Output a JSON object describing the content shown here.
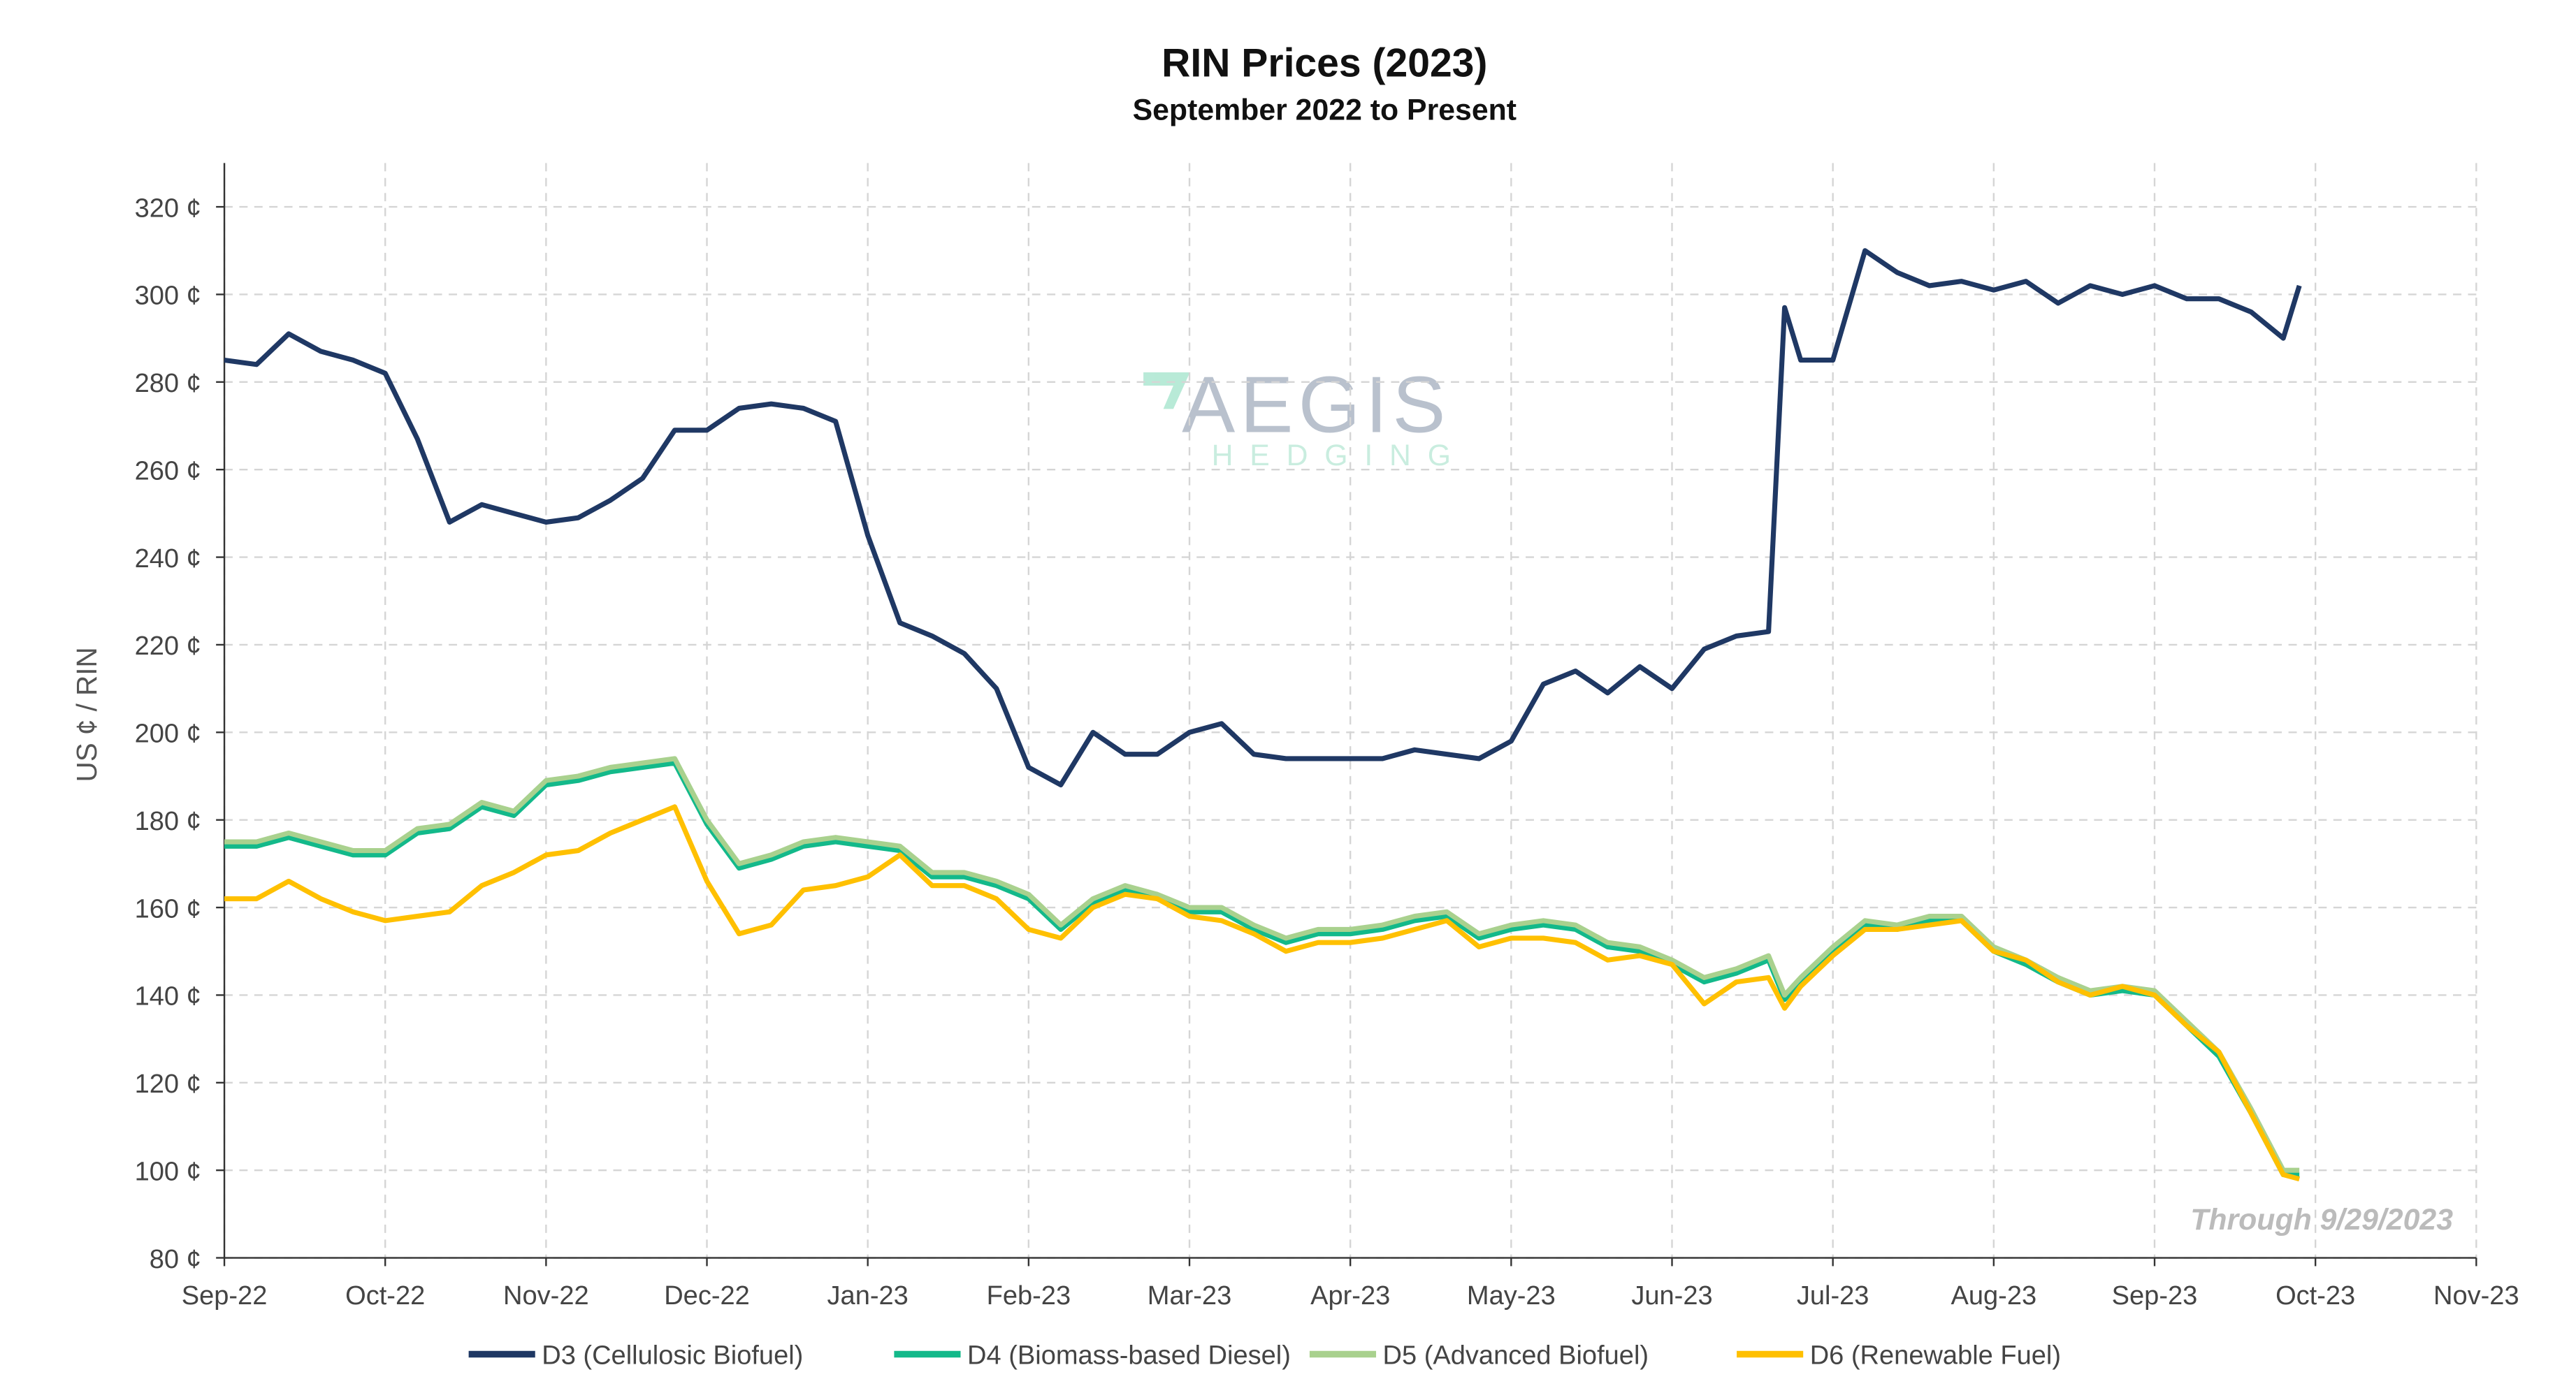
{
  "chart_data": {
    "type": "line",
    "title": "RIN Prices (2023)",
    "subtitle": "September 2022 to Present",
    "y_label": "US ¢ / RIN",
    "annotation": "Through 9/29/2023",
    "watermark": [
      "AEGIS",
      "HEDGING"
    ],
    "grid": true,
    "legend": "bottom",
    "xlim": [
      0,
      14
    ],
    "xticks": [
      {
        "value": 0,
        "label": "Sep-22"
      },
      {
        "value": 1,
        "label": "Oct-22"
      },
      {
        "value": 2,
        "label": "Nov-22"
      },
      {
        "value": 3,
        "label": "Dec-22"
      },
      {
        "value": 4,
        "label": "Jan-23"
      },
      {
        "value": 5,
        "label": "Feb-23"
      },
      {
        "value": 6,
        "label": "Mar-23"
      },
      {
        "value": 7,
        "label": "Apr-23"
      },
      {
        "value": 8,
        "label": "May-23"
      },
      {
        "value": 9,
        "label": "Jun-23"
      },
      {
        "value": 10,
        "label": "Jul-23"
      },
      {
        "value": 11,
        "label": "Aug-23"
      },
      {
        "value": 12,
        "label": "Sep-23"
      },
      {
        "value": 13,
        "label": "Oct-23"
      },
      {
        "value": 14,
        "label": "Nov-23"
      }
    ],
    "ylim": [
      80,
      330
    ],
    "yticks": [
      {
        "value": 80,
        "label": "80 ¢"
      },
      {
        "value": 100,
        "label": "100 ¢"
      },
      {
        "value": 120,
        "label": "120 ¢"
      },
      {
        "value": 140,
        "label": "140 ¢"
      },
      {
        "value": 160,
        "label": "160 ¢"
      },
      {
        "value": 180,
        "label": "180 ¢"
      },
      {
        "value": 200,
        "label": "200 ¢"
      },
      {
        "value": 220,
        "label": "220 ¢"
      },
      {
        "value": 240,
        "label": "240 ¢"
      },
      {
        "value": 260,
        "label": "260 ¢"
      },
      {
        "value": 280,
        "label": "280 ¢"
      },
      {
        "value": 300,
        "label": "300 ¢"
      },
      {
        "value": 320,
        "label": "320 ¢"
      }
    ],
    "x": [
      0,
      0.2,
      0.4,
      0.6,
      0.8,
      1,
      1.2,
      1.4,
      1.6,
      1.8,
      2,
      2.2,
      2.4,
      2.6,
      2.8,
      3,
      3.2,
      3.4,
      3.6,
      3.8,
      4,
      4.2,
      4.4,
      4.6,
      4.8,
      5,
      5.2,
      5.4,
      5.6,
      5.8,
      6,
      6.2,
      6.4,
      6.6,
      6.8,
      7,
      7.2,
      7.4,
      7.6,
      7.8,
      8,
      8.2,
      8.4,
      8.6,
      8.8,
      9,
      9.2,
      9.4,
      9.6,
      9.7,
      9.8,
      10,
      10.2,
      10.4,
      10.6,
      10.8,
      11,
      11.2,
      11.4,
      11.6,
      11.8,
      12,
      12.2,
      12.4,
      12.6,
      12.8,
      12.9
    ],
    "series": [
      {
        "name": "D3 (Cellulosic Biofuel)",
        "color": "#1f3864",
        "values": [
          285,
          284,
          291,
          287,
          285,
          282,
          267,
          248,
          252,
          250,
          248,
          249,
          253,
          258,
          269,
          269,
          274,
          275,
          274,
          271,
          245,
          225,
          222,
          218,
          210,
          192,
          188,
          200,
          195,
          195,
          200,
          202,
          195,
          194,
          194,
          194,
          194,
          196,
          195,
          194,
          198,
          211,
          214,
          209,
          215,
          210,
          219,
          222,
          223,
          297,
          285,
          285,
          310,
          305,
          302,
          303,
          301,
          303,
          298,
          302,
          300,
          302,
          299,
          299,
          296,
          290,
          302
        ]
      },
      {
        "name": "D4 (Biomass-based Diesel)",
        "color": "#13b98a",
        "values": [
          174,
          174,
          176,
          174,
          172,
          172,
          177,
          178,
          183,
          181,
          188,
          189,
          191,
          192,
          193,
          179,
          169,
          171,
          174,
          175,
          174,
          173,
          167,
          167,
          165,
          162,
          155,
          161,
          164,
          162,
          159,
          159,
          155,
          152,
          154,
          154,
          155,
          157,
          158,
          153,
          155,
          156,
          155,
          151,
          150,
          147,
          143,
          145,
          148,
          139,
          143,
          150,
          156,
          155,
          157,
          157,
          150,
          147,
          143,
          140,
          141,
          140,
          133,
          126,
          113,
          99,
          99
        ]
      },
      {
        "name": "D5 (Advanced Biofuel)",
        "color": "#a9d18e",
        "values": [
          175,
          175,
          177,
          175,
          173,
          173,
          178,
          179,
          184,
          182,
          189,
          190,
          192,
          193,
          194,
          180,
          170,
          172,
          175,
          176,
          175,
          174,
          168,
          168,
          166,
          163,
          156,
          162,
          165,
          163,
          160,
          160,
          156,
          153,
          155,
          155,
          156,
          158,
          159,
          154,
          156,
          157,
          156,
          152,
          151,
          148,
          144,
          146,
          149,
          140,
          144,
          151,
          157,
          156,
          158,
          158,
          151,
          148,
          144,
          141,
          142,
          141,
          134,
          127,
          114,
          100,
          100
        ]
      },
      {
        "name": "D6 (Renewable Fuel)",
        "color": "#ffc000",
        "values": [
          162,
          162,
          166,
          162,
          159,
          157,
          158,
          159,
          165,
          168,
          172,
          173,
          177,
          180,
          183,
          166,
          154,
          156,
          164,
          165,
          167,
          172,
          165,
          165,
          162,
          155,
          153,
          160,
          163,
          162,
          158,
          157,
          154,
          150,
          152,
          152,
          153,
          155,
          157,
          151,
          153,
          153,
          152,
          148,
          149,
          147,
          138,
          143,
          144,
          137,
          142,
          149,
          155,
          155,
          156,
          157,
          150,
          148,
          143,
          140,
          142,
          140,
          133,
          127,
          113,
          99,
          98
        ]
      }
    ]
  }
}
